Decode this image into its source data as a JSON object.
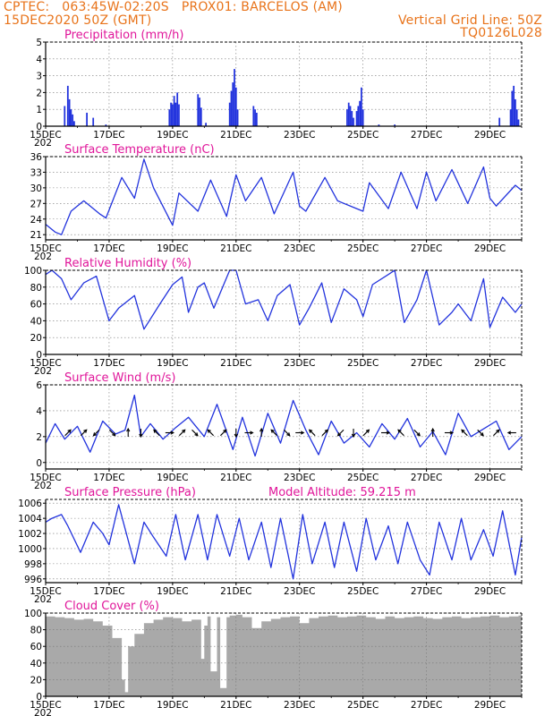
{
  "header": {
    "line1": "CPTEC:   063:45W-02:20S   PROX01: BARCELOS (AM)",
    "line2_left": "15DEC2020 50Z (GMT)",
    "line2_right": "Vertical Grid Line: 50Z",
    "line3_right": "TQ0126L028"
  },
  "x_axis": {
    "range_days": [
      15,
      30
    ],
    "tick_days": [
      15,
      17,
      19,
      21,
      23,
      25,
      27,
      29
    ],
    "tick_labels": [
      "15DEC",
      "17DEC",
      "19DEC",
      "21DEC",
      "23DEC",
      "25DEC",
      "27DEC",
      "29DEC"
    ],
    "year_fragment": "202"
  },
  "colors": {
    "series": "#2233dd",
    "title": "#e0169a",
    "header": "#e8731a",
    "cloud": "#a9a9a9"
  },
  "chart_data": [
    {
      "type": "bar",
      "title": "Precipitation (mm/h)",
      "ylim": [
        0,
        5
      ],
      "yticks": [
        0,
        1,
        2,
        3,
        4,
        5
      ],
      "x": [
        15.6,
        15.7,
        15.75,
        15.8,
        15.85,
        15.9,
        16.3,
        16.5,
        16.9,
        18.9,
        18.95,
        19.0,
        19.05,
        19.1,
        19.15,
        19.2,
        19.8,
        19.85,
        19.9,
        20.05,
        20.8,
        20.85,
        20.9,
        20.95,
        21.0,
        21.05,
        21.55,
        21.6,
        21.65,
        24.5,
        24.55,
        24.6,
        24.65,
        24.7,
        24.8,
        24.85,
        24.9,
        24.95,
        25.0,
        25.5,
        26.0,
        29.3,
        29.65,
        29.7,
        29.75,
        29.8,
        29.85,
        29.9
      ],
      "values": [
        1.2,
        2.4,
        1.6,
        1.0,
        0.7,
        0.3,
        0.8,
        0.5,
        0.1,
        1.0,
        1.4,
        1.3,
        1.8,
        1.4,
        2.0,
        1.3,
        1.9,
        1.7,
        1.1,
        0.2,
        1.4,
        2.1,
        2.6,
        3.4,
        2.3,
        1.0,
        1.2,
        1.0,
        0.8,
        1.0,
        1.4,
        1.2,
        0.9,
        0.5,
        0.9,
        1.2,
        1.5,
        2.3,
        1.0,
        0.1,
        0.1,
        0.5,
        1.0,
        2.1,
        2.4,
        1.6,
        1.0,
        0.4
      ]
    },
    {
      "type": "line",
      "title": "Surface Temperature (nC)",
      "ylim": [
        20,
        36
      ],
      "yticks": [
        21,
        24,
        27,
        30,
        33,
        36
      ],
      "x": [
        15.0,
        15.3,
        15.5,
        15.8,
        16.2,
        16.7,
        16.9,
        17.4,
        17.8,
        18.1,
        18.4,
        19.0,
        19.2,
        19.8,
        20.2,
        20.7,
        21.0,
        21.3,
        21.8,
        22.2,
        22.8,
        23.0,
        23.2,
        23.8,
        24.2,
        24.8,
        25.0,
        25.2,
        25.8,
        26.2,
        26.7,
        27.0,
        27.3,
        27.8,
        28.3,
        28.8,
        29.0,
        29.2,
        29.8,
        30.0
      ],
      "values": [
        23.0,
        21.5,
        21.0,
        25.5,
        27.5,
        25.0,
        24.2,
        32.0,
        28.0,
        35.5,
        30.0,
        22.8,
        29.0,
        25.5,
        31.5,
        24.5,
        32.5,
        27.5,
        32.0,
        25.0,
        33.0,
        26.5,
        25.5,
        32.0,
        27.5,
        26.0,
        25.5,
        31.0,
        26.0,
        33.0,
        26.0,
        33.0,
        27.5,
        33.5,
        27.0,
        34.0,
        28.0,
        26.5,
        30.5,
        29.5
      ]
    },
    {
      "type": "line",
      "title": "Relative Humidity (%)",
      "ylim": [
        0,
        100
      ],
      "yticks": [
        0,
        20,
        40,
        60,
        80,
        100
      ],
      "x": [
        15.0,
        15.2,
        15.5,
        15.8,
        16.2,
        16.6,
        17.0,
        17.3,
        17.8,
        18.1,
        18.6,
        19.0,
        19.3,
        19.5,
        19.8,
        20.0,
        20.3,
        20.8,
        21.0,
        21.3,
        21.7,
        22.0,
        22.3,
        22.7,
        23.0,
        23.3,
        23.7,
        24.0,
        24.4,
        24.8,
        25.0,
        25.3,
        25.8,
        26.0,
        26.3,
        26.7,
        27.0,
        27.4,
        27.8,
        28.0,
        28.4,
        28.8,
        29.0,
        29.4,
        29.8,
        30.0
      ],
      "values": [
        95.0,
        100.0,
        90.0,
        65.0,
        85.0,
        93.0,
        40.0,
        55.0,
        70.0,
        30.0,
        60.0,
        83.0,
        92.0,
        50.0,
        80.0,
        85.0,
        55.0,
        100.0,
        100.0,
        60.0,
        65.0,
        40.0,
        70.0,
        83.0,
        35.0,
        55.0,
        85.0,
        38.0,
        78.0,
        65.0,
        45.0,
        83.0,
        95.0,
        100.0,
        38.0,
        65.0,
        100.0,
        35.0,
        50.0,
        60.0,
        40.0,
        90.0,
        32.0,
        68.0,
        50.0,
        60.0
      ]
    },
    {
      "type": "line",
      "title": "Surface Wind (m/s)",
      "ylim": [
        -0.5,
        6
      ],
      "yticks": [
        0,
        2,
        4,
        6
      ],
      "x": [
        15.0,
        15.3,
        15.6,
        16.0,
        16.4,
        16.8,
        17.2,
        17.5,
        17.8,
        18.0,
        18.3,
        18.7,
        19.1,
        19.5,
        20.0,
        20.4,
        20.9,
        21.2,
        21.6,
        22.0,
        22.4,
        22.8,
        23.2,
        23.6,
        24.0,
        24.4,
        24.8,
        25.2,
        25.6,
        26.0,
        26.4,
        26.8,
        27.2,
        27.6,
        28.0,
        28.4,
        28.8,
        29.2,
        29.6,
        30.0
      ],
      "values": [
        1.5,
        3.0,
        1.8,
        2.8,
        0.8,
        3.2,
        2.2,
        2.5,
        5.2,
        2.0,
        3.0,
        1.8,
        2.7,
        3.5,
        2.0,
        4.5,
        1.0,
        3.5,
        0.5,
        3.8,
        1.5,
        4.8,
        2.5,
        0.6,
        3.2,
        1.5,
        2.3,
        1.2,
        3.0,
        1.8,
        3.4,
        1.2,
        2.4,
        0.6,
        3.8,
        2.0,
        2.6,
        3.2,
        1.0,
        2.0
      ],
      "arrows": {
        "x": [
          15.7,
          16.2,
          16.6,
          17.1,
          17.6,
          18.0,
          18.5,
          18.9,
          19.3,
          19.7,
          20.2,
          20.6,
          21.0,
          21.4,
          21.8,
          22.2,
          22.6,
          23.0,
          23.4,
          23.8,
          24.3,
          24.7,
          25.1,
          25.7,
          26.2,
          26.7,
          27.2,
          27.7,
          28.2,
          28.7,
          29.2,
          29.7
        ],
        "u": [
          1,
          1,
          -1,
          1,
          0,
          0,
          -1,
          1,
          1,
          1,
          -1,
          1,
          0,
          1,
          0,
          -1,
          1,
          1,
          -1,
          1,
          -1,
          0,
          1,
          1,
          -1,
          1,
          0,
          1,
          -1,
          1,
          1,
          -1
        ],
        "v": [
          1,
          1,
          -1,
          -1,
          1,
          -1,
          1,
          0,
          1,
          -1,
          1,
          1,
          -1,
          0,
          1,
          1,
          -1,
          0,
          1,
          1,
          -1,
          -1,
          1,
          0,
          1,
          -1,
          1,
          0,
          1,
          -1,
          1,
          0
        ]
      }
    },
    {
      "type": "line",
      "title": "Surface Pressure (hPa)",
      "annotation": "Model Altitude: 59.215 m",
      "ylim": [
        995.5,
        1006.5
      ],
      "yticks": [
        996,
        998,
        1000,
        1002,
        1004,
        1006
      ],
      "x": [
        15.0,
        15.2,
        15.5,
        15.7,
        16.1,
        16.5,
        16.8,
        17.0,
        17.3,
        17.8,
        18.1,
        18.4,
        18.8,
        19.1,
        19.4,
        19.8,
        20.1,
        20.4,
        20.8,
        21.1,
        21.4,
        21.8,
        22.1,
        22.4,
        22.8,
        23.1,
        23.4,
        23.8,
        24.1,
        24.4,
        24.8,
        25.1,
        25.4,
        25.8,
        26.1,
        26.4,
        26.8,
        27.1,
        27.4,
        27.8,
        28.1,
        28.4,
        28.8,
        29.1,
        29.4,
        29.8,
        30.0
      ],
      "values": [
        1003.5,
        1004.0,
        1004.5,
        1003.0,
        999.5,
        1003.5,
        1002.0,
        1000.5,
        1005.8,
        998.0,
        1003.5,
        1001.5,
        999.0,
        1004.5,
        998.5,
        1004.5,
        998.5,
        1004.5,
        999.0,
        1004.0,
        998.5,
        1003.5,
        997.5,
        1004.0,
        996.0,
        1004.5,
        998.0,
        1003.5,
        997.5,
        1003.5,
        997.0,
        1004.0,
        998.5,
        1003.0,
        998.0,
        1003.5,
        998.5,
        996.5,
        1003.5,
        998.5,
        1004.0,
        998.5,
        1002.5,
        999.0,
        1005.0,
        996.5,
        1001.5
      ]
    },
    {
      "type": "area",
      "title": "Cloud Cover (%)",
      "ylim": [
        0,
        100
      ],
      "yticks": [
        0,
        20,
        40,
        60,
        80,
        100
      ],
      "x": [
        15.0,
        15.3,
        15.6,
        15.9,
        16.2,
        16.5,
        16.8,
        17.1,
        17.4,
        17.5,
        17.6,
        17.8,
        18.1,
        18.4,
        18.7,
        19.0,
        19.3,
        19.6,
        19.9,
        20.0,
        20.1,
        20.2,
        20.4,
        20.5,
        20.7,
        20.8,
        21.0,
        21.2,
        21.5,
        21.8,
        22.1,
        22.4,
        22.7,
        23.0,
        23.3,
        23.6,
        23.9,
        24.2,
        24.5,
        24.8,
        25.1,
        25.4,
        25.7,
        26.0,
        26.3,
        26.6,
        26.9,
        27.2,
        27.5,
        27.8,
        28.1,
        28.4,
        28.7,
        29.0,
        29.3,
        29.6,
        29.9,
        30.0
      ],
      "values": [
        96.0,
        95.0,
        94.0,
        92.0,
        93.0,
        90.0,
        85.0,
        70.0,
        20.0,
        5.0,
        60.0,
        75.0,
        88.0,
        92.0,
        95.0,
        94.0,
        90.0,
        92.0,
        45.0,
        85.0,
        96.0,
        30.0,
        95.0,
        10.0,
        95.0,
        97.0,
        98.0,
        95.0,
        82.0,
        90.0,
        93.0,
        95.0,
        96.0,
        88.0,
        94.0,
        96.0,
        97.0,
        95.0,
        96.0,
        97.0,
        95.0,
        93.0,
        96.0,
        94.0,
        95.0,
        96.0,
        94.0,
        93.0,
        95.0,
        96.0,
        94.0,
        95.0,
        96.0,
        97.0,
        95.0,
        96.0,
        97.0,
        96.0
      ]
    }
  ]
}
